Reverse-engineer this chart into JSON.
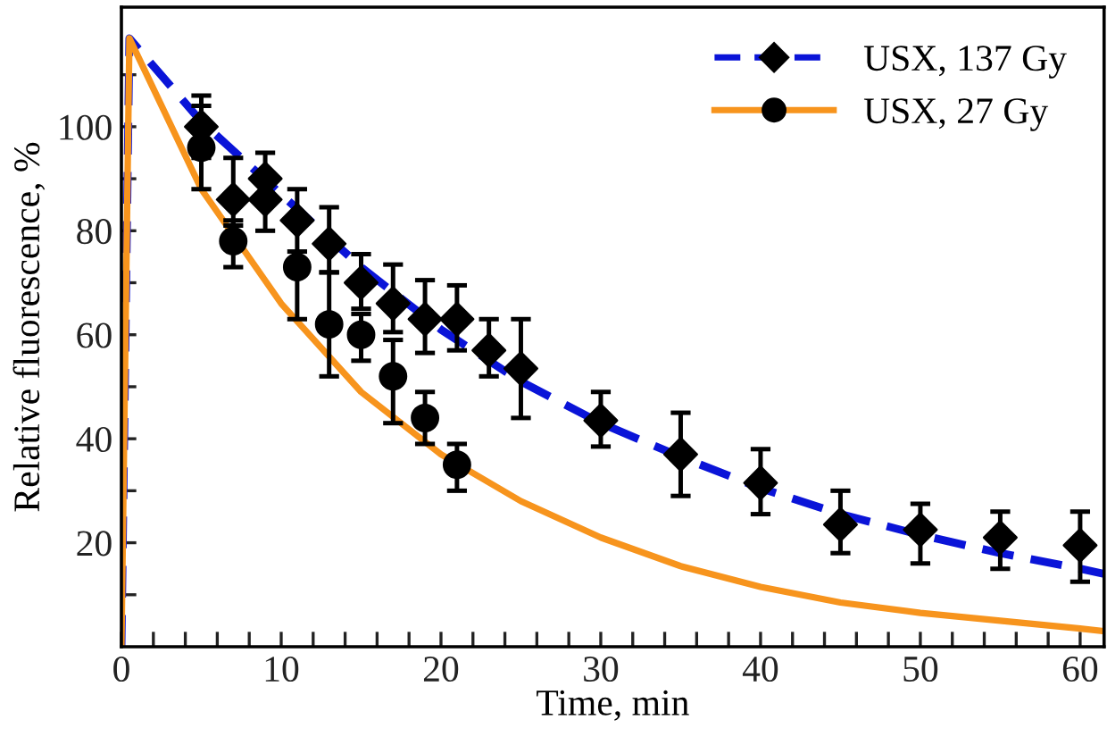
{
  "chart_data": {
    "type": "scatter",
    "xlabel": "Time, min",
    "ylabel": "Relative fluorescence, %",
    "xlim": [
      0,
      61.5
    ],
    "ylim": [
      0,
      123
    ],
    "xticks": [
      0,
      {
        "value": 2,
        "label": null
      },
      {
        "value": 4,
        "label": null
      },
      {
        "value": 6,
        "label": null
      },
      {
        "value": 8,
        "label": null
      },
      10,
      {
        "value": 12,
        "label": null
      },
      {
        "value": 14,
        "label": null
      },
      {
        "value": 16,
        "label": null
      },
      {
        "value": 18,
        "label": null
      },
      20,
      {
        "value": 22,
        "label": null
      },
      {
        "value": 24,
        "label": null
      },
      {
        "value": 26,
        "label": null
      },
      {
        "value": 28,
        "label": null
      },
      30,
      {
        "value": 32,
        "label": null
      },
      {
        "value": 34,
        "label": null
      },
      {
        "value": 36,
        "label": null
      },
      {
        "value": 38,
        "label": null
      },
      40,
      {
        "value": 42,
        "label": null
      },
      {
        "value": 44,
        "label": null
      },
      {
        "value": 46,
        "label": null
      },
      {
        "value": 48,
        "label": null
      },
      50,
      {
        "value": 52,
        "label": null
      },
      {
        "value": 54,
        "label": null
      },
      {
        "value": 56,
        "label": null
      },
      {
        "value": 58,
        "label": null
      },
      60
    ],
    "yticks": [
      {
        "value": 10,
        "label": null
      },
      20,
      {
        "value": 30,
        "label": null
      },
      40,
      {
        "value": 50,
        "label": null
      },
      60,
      {
        "value": 70,
        "label": null
      },
      80,
      {
        "value": 90,
        "label": null
      },
      100,
      {
        "value": 110,
        "label": null
      }
    ],
    "grid": false,
    "legend": "top right",
    "series": [
      {
        "type": "line",
        "color": "#0a14d8",
        "line_style": "dashed",
        "x": [
          0,
          0.5,
          5,
          10,
          15,
          20,
          25,
          30,
          35,
          40,
          45,
          50,
          55,
          60,
          61.5
        ],
        "values": [
          0,
          117,
          101,
          87,
          73,
          61,
          51,
          43,
          36.5,
          30.5,
          25.5,
          21.5,
          18,
          15,
          14
        ]
      },
      {
        "type": "line",
        "color": "#f7941d",
        "line_style": "solid",
        "x": [
          0,
          0.5,
          5,
          10,
          15,
          20,
          25,
          30,
          35,
          40,
          45,
          50,
          55,
          60,
          61.5
        ],
        "values": [
          0,
          117,
          88,
          66,
          49,
          37,
          28,
          21,
          15.5,
          11.5,
          8.5,
          6.5,
          5,
          3.5,
          3
        ]
      },
      {
        "name": "USX, 137 Gy",
        "color": "#000000",
        "marker": "diamond",
        "x": [
          5,
          7,
          9,
          9,
          11,
          13,
          15,
          17,
          19,
          21,
          23,
          25,
          30,
          35,
          40,
          45,
          50,
          55,
          60
        ],
        "values": [
          100,
          86,
          90,
          86,
          82,
          77.5,
          70,
          66,
          63,
          63,
          57,
          53.5,
          43.5,
          37,
          31.5,
          23.5,
          22.5,
          21,
          19.5
        ],
        "errors": [
          [
            94,
            106
          ],
          [
            81,
            94
          ],
          [
            90,
            95
          ],
          [
            80,
            86
          ],
          [
            76,
            88
          ],
          [
            72,
            84.5
          ],
          [
            65,
            75.5
          ],
          [
            60.5,
            73.5
          ],
          [
            56.5,
            70.5
          ],
          [
            57,
            69.5
          ],
          [
            52,
            63
          ],
          [
            44,
            63
          ],
          [
            38.5,
            49
          ],
          [
            29,
            45
          ],
          [
            25.5,
            38
          ],
          [
            18,
            30
          ],
          [
            16,
            27.5
          ],
          [
            15,
            26
          ],
          [
            12.5,
            26
          ]
        ]
      },
      {
        "name": "USX, 27 Gy",
        "color": "#000000",
        "marker": "circle",
        "x": [
          5,
          7,
          9,
          11,
          13,
          15,
          17,
          19,
          21
        ],
        "values": [
          96,
          78,
          null,
          73,
          62,
          60,
          52,
          44,
          35
        ],
        "errors": [
          [
            88,
            104
          ],
          [
            73,
            82
          ],
          null,
          [
            63,
            73
          ],
          [
            52,
            72
          ],
          [
            55,
            64
          ],
          [
            43,
            59
          ],
          [
            39,
            49
          ],
          [
            30,
            39
          ]
        ]
      }
    ]
  }
}
